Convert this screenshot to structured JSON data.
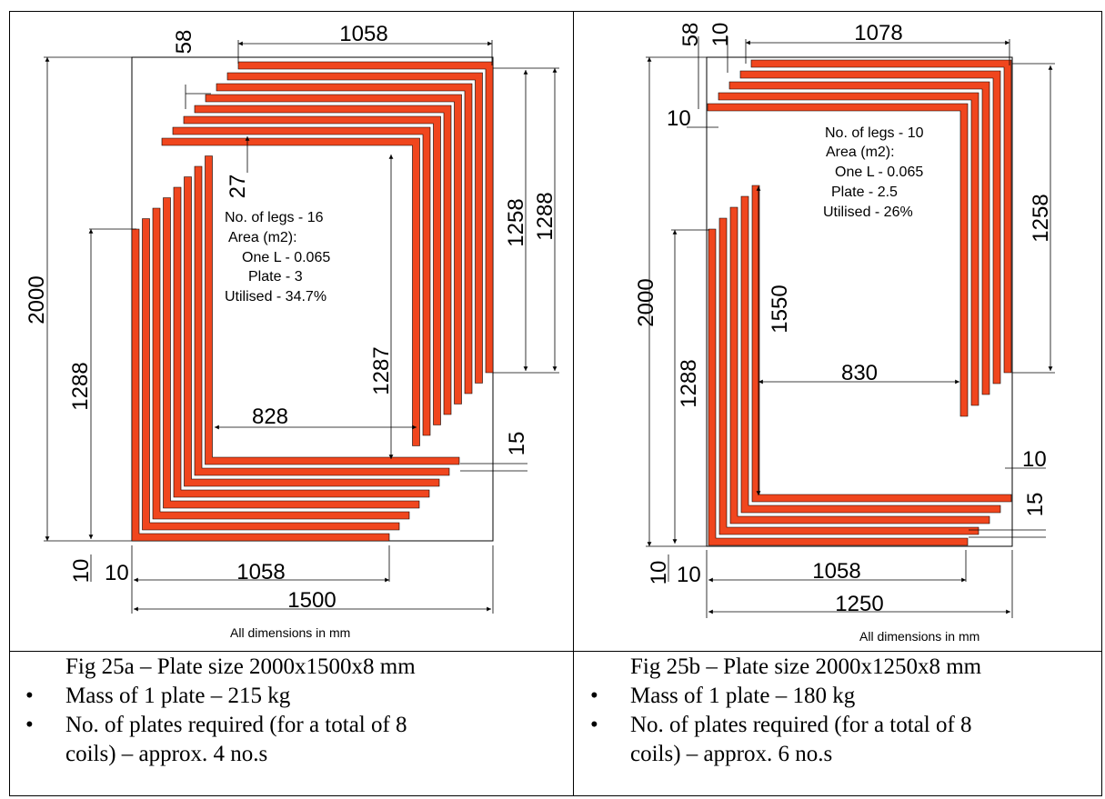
{
  "fig_a": {
    "dims": {
      "top_width": "1058",
      "gap_58": "58",
      "height_2000": "2000",
      "right_1258": "1258",
      "right_1288": "1288",
      "gap_27": "27",
      "left_1288": "1288",
      "inner_1287": "1287",
      "inner_828": "828",
      "gap_15": "15",
      "bottom_10a": "10",
      "bottom_10b": "10",
      "bottom_1058": "1058",
      "bottom_1500": "1500"
    },
    "notes": [
      "No. of legs - 16",
      "Area (m2):",
      "One L - 0.065",
      "Plate - 3",
      "Utilised - 34.7%"
    ],
    "footer": "All dimensions in mm",
    "caption_title": "Fig 25a – Plate size 2000x1500x8 mm",
    "bullets": [
      "Mass of 1 plate – 215 kg",
      "No. of plates required (for a total of 8",
      "coils) – approx. 4 no.s"
    ]
  },
  "fig_b": {
    "dims": {
      "gap_58": "58",
      "gap_10_top": "10",
      "top_width": "1078",
      "left_10": "10",
      "right_1258": "1258",
      "height_2000": "2000",
      "inner_1550": "1550",
      "left_1288": "1288",
      "inner_830": "830",
      "right_10": "10",
      "gap_15": "15",
      "bottom_10a": "10",
      "bottom_10b": "10",
      "bottom_1058": "1058",
      "bottom_1250": "1250"
    },
    "notes": [
      "No. of legs - 10",
      "Area (m2):",
      "One L - 0.065",
      "Plate - 2.5",
      "Utilised - 26%"
    ],
    "footer": "All dimensions in mm",
    "caption_title": "Fig 25b – Plate size 2000x1250x8 mm",
    "bullets": [
      "Mass of 1 plate – 180 kg",
      "No. of plates required (for a total of 8",
      "coils) – approx. 6 no.s"
    ]
  },
  "colors": {
    "leg_fill": "#f0461e",
    "leg_stroke": "#000000"
  }
}
